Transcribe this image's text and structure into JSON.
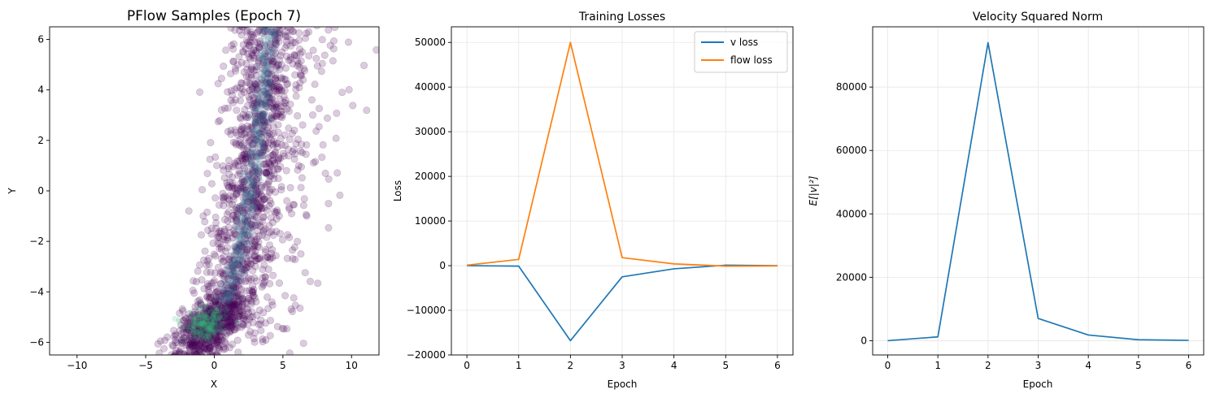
{
  "colors": {
    "v_loss": "#1f77b4",
    "flow_loss": "#ff7f0e",
    "scatter_point": "#440154",
    "density_mid": "#31688e",
    "density_high": "#35b779",
    "grid": "#e6e6e6"
  },
  "chart_data": [
    {
      "type": "scatter",
      "title": "PFlow Samples (Epoch 7)",
      "xlabel": "X",
      "ylabel": "Y",
      "xlim": [
        -12,
        12
      ],
      "ylim": [
        -6.5,
        6.5
      ],
      "x_ticks": [
        -10,
        -5,
        0,
        5,
        10
      ],
      "y_ticks": [
        -6,
        -4,
        -2,
        0,
        2,
        4,
        6
      ],
      "x_tick_labels": [
        "−10",
        "−5",
        "0",
        "5",
        "10"
      ],
      "y_tick_labels": [
        "−6",
        "−4",
        "−2",
        "0",
        "2",
        "4",
        "6"
      ],
      "grid": false,
      "color": "#440154",
      "alpha": 0.2,
      "distribution": {
        "shape": "curved band along a banana-shaped manifold",
        "centerline": [
          [
            -0.3,
            -5.3
          ],
          [
            1.0,
            -4.2
          ],
          [
            2.0,
            -2.0
          ],
          [
            2.8,
            0.5
          ],
          [
            3.4,
            3.0
          ],
          [
            4.0,
            6.5
          ]
        ],
        "densest_region": [
          -0.8,
          -5.3
        ],
        "sample_count_approx": 5000
      }
    },
    {
      "type": "line",
      "title": "Training Losses",
      "xlabel": "Epoch",
      "ylabel": "Loss",
      "x": [
        0,
        1,
        2,
        3,
        4,
        5,
        6
      ],
      "xlim": [
        -0.3,
        6.3
      ],
      "ylim": [
        -20000,
        53500
      ],
      "x_ticks": [
        0,
        1,
        2,
        3,
        4,
        5,
        6
      ],
      "y_ticks": [
        -20000,
        -10000,
        0,
        10000,
        20000,
        30000,
        40000,
        50000
      ],
      "x_tick_labels": [
        "0",
        "1",
        "2",
        "3",
        "4",
        "5",
        "6"
      ],
      "y_tick_labels": [
        "−20000",
        "−10000",
        "0",
        "10000",
        "20000",
        "30000",
        "40000",
        "50000"
      ],
      "grid": true,
      "legend": "top-right",
      "series": [
        {
          "name": "v loss",
          "values": [
            0,
            -100,
            -16800,
            -2500,
            -700,
            100,
            0
          ],
          "color": "#1f77b4"
        },
        {
          "name": "flow loss",
          "values": [
            100,
            1400,
            50000,
            1800,
            400,
            -100,
            -50
          ],
          "color": "#ff7f0e"
        }
      ]
    },
    {
      "type": "line",
      "title": "Velocity Squared Norm",
      "xlabel": "Epoch",
      "ylabel": "E[|v|²]",
      "x": [
        0,
        1,
        2,
        3,
        4,
        5,
        6
      ],
      "xlim": [
        -0.3,
        6.3
      ],
      "ylim": [
        -4500,
        99000
      ],
      "x_ticks": [
        0,
        1,
        2,
        3,
        4,
        5,
        6
      ],
      "y_ticks": [
        0,
        20000,
        40000,
        60000,
        80000
      ],
      "x_tick_labels": [
        "0",
        "1",
        "2",
        "3",
        "4",
        "5",
        "6"
      ],
      "y_tick_labels": [
        "0",
        "20000",
        "40000",
        "60000",
        "80000"
      ],
      "grid": true,
      "series": [
        {
          "values": [
            0,
            1200,
            94000,
            7000,
            1800,
            300,
            100
          ],
          "color": "#1f77b4"
        }
      ]
    }
  ]
}
